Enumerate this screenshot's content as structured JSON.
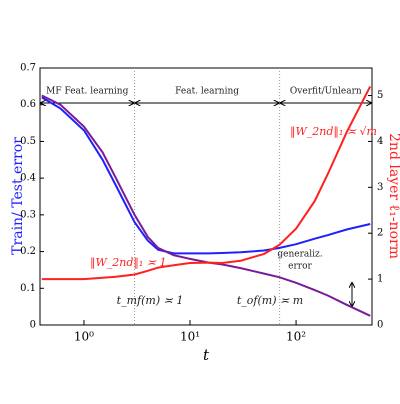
{
  "chart_data": {
    "type": "line",
    "x_label": "t",
    "y_label": "Train/ Test error",
    "y2_label": "2nd layer ℓ₁-norm",
    "log_x": true,
    "x": [
      0.4,
      0.6,
      1,
      1.5,
      2,
      3,
      4,
      5,
      7,
      10,
      15,
      20,
      30,
      50,
      70,
      100,
      150,
      200,
      300,
      500
    ],
    "series": [
      {
        "name": "Test error",
        "color": "#2020ff",
        "values": [
          0.62,
          0.59,
          0.53,
          0.45,
          0.38,
          0.28,
          0.23,
          0.205,
          0.195,
          0.195,
          0.195,
          0.196,
          0.198,
          0.203,
          0.21,
          0.22,
          0.235,
          0.245,
          0.26,
          0.275
        ]
      },
      {
        "name": "Train error",
        "color": "#7a1b9a",
        "values": [
          0.625,
          0.6,
          0.54,
          0.47,
          0.4,
          0.3,
          0.24,
          0.21,
          0.19,
          0.18,
          0.17,
          0.165,
          0.155,
          0.14,
          0.13,
          0.115,
          0.095,
          0.08,
          0.055,
          0.025
        ]
      },
      {
        "name": "2nd layer norm",
        "color": "#ff2020",
        "axis": "y2",
        "values": [
          1.0,
          1.0,
          1.0,
          1.03,
          1.05,
          1.1,
          1.18,
          1.25,
          1.3,
          1.35,
          1.36,
          1.35,
          1.4,
          1.55,
          1.75,
          2.1,
          2.7,
          3.3,
          4.2,
          5.2
        ]
      }
    ],
    "xlim": [
      0.385,
      520
    ],
    "xticks": [
      {
        "value": 1,
        "label": "10⁰"
      },
      {
        "value": 10,
        "label": "10¹"
      },
      {
        "value": 100,
        "label": "10²"
      }
    ],
    "ylim": [
      0,
      0.7
    ],
    "yticks": [
      0.0,
      0.1,
      0.2,
      0.3,
      0.4,
      0.5,
      0.6,
      0.7
    ],
    "y2lim": [
      0,
      5.6
    ],
    "y2ticks": [
      0,
      1,
      2,
      3,
      4,
      5
    ],
    "vlines": [
      3,
      70
    ],
    "regions": [
      {
        "label": "MF Feat. learning",
        "from": 0.385,
        "to": 3
      },
      {
        "label": "Feat. learning",
        "from": 3,
        "to": 70
      },
      {
        "label": "Overfit/Unlearn",
        "from": 70,
        "to": 520
      }
    ],
    "annotations": [
      "‖W_2nd‖₁ ≍ 1",
      "‖W_2nd‖₁ ≍ √m",
      "t_mf(m) ≍ 1",
      "t_of(m) ≍ m",
      "generaliz.",
      "error"
    ]
  }
}
